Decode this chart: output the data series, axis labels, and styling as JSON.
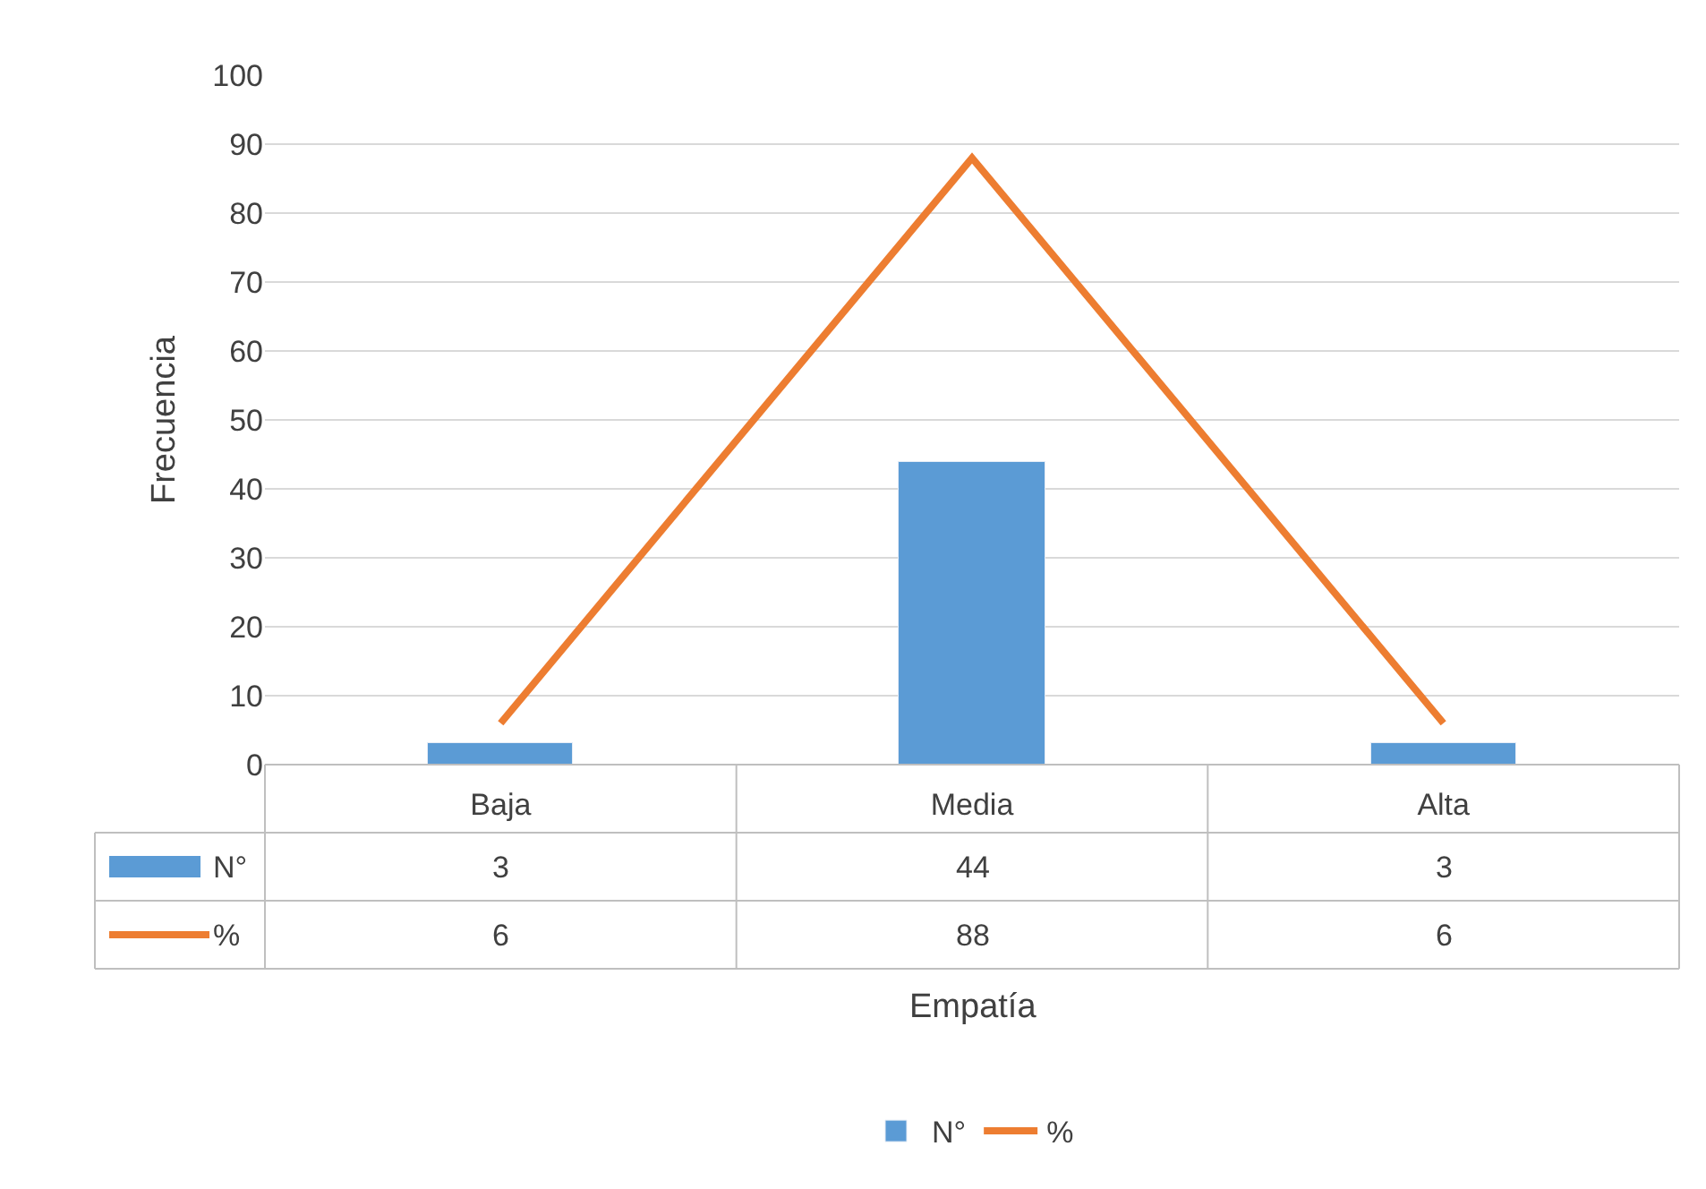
{
  "chart_data": {
    "type": "bar",
    "xlabel": "Empatía",
    "ylabel": "Frecuencia",
    "categories": [
      "Baja",
      "Media",
      "Alta"
    ],
    "series": [
      {
        "name": "N°",
        "color": "#5b9bd5",
        "values": [
          3,
          44,
          3
        ]
      },
      {
        "name": "%",
        "type": "line",
        "color": "#ed7d31",
        "values": [
          6,
          88,
          6
        ]
      }
    ],
    "ylim": [
      0,
      100
    ],
    "yticks": [
      0,
      10,
      20,
      30,
      40,
      50,
      60,
      70,
      80,
      90,
      100
    ],
    "grid": "y",
    "legend": "bottom",
    "data_labels": true,
    "marker": "none",
    "line_style": "solid"
  }
}
